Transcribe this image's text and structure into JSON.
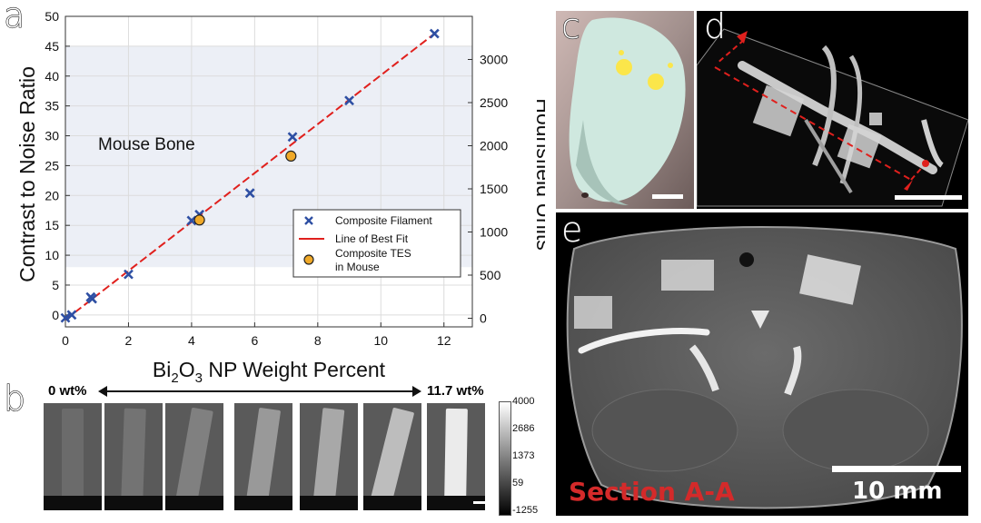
{
  "panels": {
    "a": "a",
    "b": "b",
    "c": "c",
    "d": "d",
    "e": "e"
  },
  "chart_data": {
    "type": "scatter",
    "xlabel_main": "Bi",
    "xlabel_sub": "2",
    "xlabel_mid": "O",
    "xlabel_sub2": "3",
    "xlabel_rest": " NP Weight Percent",
    "ylabel": "Contrast to Noise Ratio",
    "y2label": "Hounsfield Units",
    "xlim": [
      0,
      12.9
    ],
    "ylim": [
      -2,
      50
    ],
    "y2lim": [
      -100,
      3500
    ],
    "xticks": [
      0,
      2,
      4,
      6,
      8,
      10,
      12
    ],
    "yticks": [
      0,
      5,
      10,
      15,
      20,
      25,
      30,
      35,
      40,
      45,
      50
    ],
    "y2ticks": [
      0,
      500,
      1000,
      1500,
      2000,
      2500,
      3000
    ],
    "grid": true,
    "band": {
      "label": "Mouse Bone",
      "y_from": 8,
      "y_to": 45
    },
    "series": [
      {
        "name": "Composite Filament",
        "marker": "x",
        "color": "#2e4fa3",
        "points": [
          [
            0,
            -0.5
          ],
          [
            0.2,
            0
          ],
          [
            0.8,
            3
          ],
          [
            0.85,
            2.7
          ],
          [
            2,
            6.8
          ],
          [
            4,
            15.8
          ],
          [
            4.25,
            16.8
          ],
          [
            5.85,
            20.4
          ],
          [
            7.2,
            29.8
          ],
          [
            9,
            35.9
          ],
          [
            11.7,
            47.1
          ]
        ]
      },
      {
        "name": "Line of Best Fit",
        "marker": "line",
        "color": "#e0201d",
        "points": [
          [
            0,
            -0.8
          ],
          [
            11.7,
            47.1
          ]
        ]
      },
      {
        "name": "Composite TES in Mouse",
        "marker": "o",
        "color": "#f0a928",
        "points": [
          [
            4.25,
            15.9
          ],
          [
            7.15,
            26.6
          ]
        ]
      }
    ],
    "legend": {
      "placement": "lower-right",
      "items": [
        "Composite Filament",
        "Line of Best Fit",
        "Composite TES\nin Mouse"
      ]
    }
  },
  "panel_b": {
    "left_label": "0 wt%",
    "right_label": "11.7 wt%",
    "colorbar_ticks": [
      "4000",
      "2686",
      "1373",
      "59",
      "-1255"
    ],
    "brightness": [
      0.42,
      0.45,
      0.5,
      0.6,
      0.66,
      0.74,
      0.92
    ]
  },
  "panel_e": {
    "section_label": "Section A-A",
    "scale_label": "10 mm"
  },
  "colors": {
    "accent_red": "#e0201d",
    "section_red": "#d42a2a",
    "marker_blue": "#2e4fa3",
    "marker_orange": "#f0a928",
    "band": "#eceff6"
  }
}
